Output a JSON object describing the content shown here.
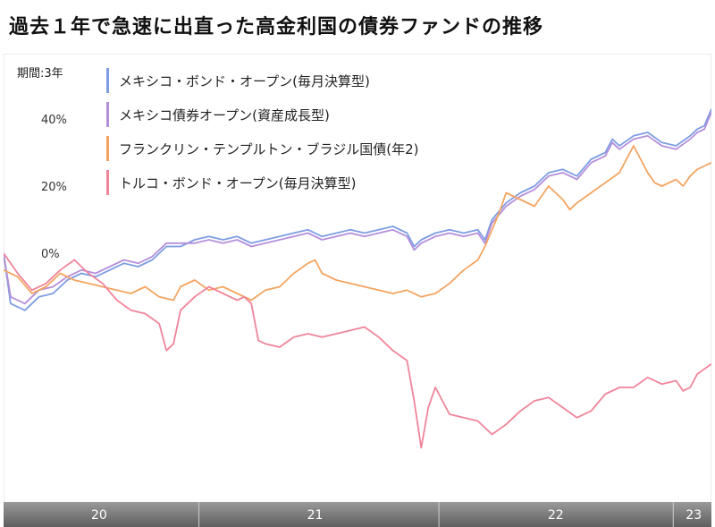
{
  "title": "過去１年で急速に出直った高金利国の債券ファンドの推移",
  "period_label": "期間:3年",
  "chart_data": {
    "type": "line",
    "title": "",
    "xlabel": "",
    "ylabel": "",
    "ylim": [
      -60,
      48
    ],
    "xlim": [
      0,
      100
    ],
    "y_ticks": [
      {
        "value": 40,
        "label": "40%"
      },
      {
        "value": 20,
        "label": "20%"
      },
      {
        "value": 0,
        "label": "0%"
      }
    ],
    "x_ticks": [
      {
        "value": 13.5,
        "label": "20"
      },
      {
        "value": 44,
        "label": "21"
      },
      {
        "value": 78,
        "label": "22"
      },
      {
        "value": 97.5,
        "label": "23"
      }
    ],
    "x_dividers": [
      27.6,
      61.5,
      94.6
    ],
    "grid": false,
    "legend_position": "top-left",
    "series": [
      {
        "name": "メキシコ・ボンド・オープン(毎月決算型)",
        "color": "#7d9de2",
        "points": [
          [
            0,
            0
          ],
          [
            1,
            -15
          ],
          [
            3,
            -17
          ],
          [
            5,
            -13
          ],
          [
            7,
            -12
          ],
          [
            9,
            -8
          ],
          [
            11,
            -6
          ],
          [
            13,
            -7
          ],
          [
            15,
            -5
          ],
          [
            17,
            -3
          ],
          [
            19,
            -4
          ],
          [
            21,
            -2
          ],
          [
            23,
            2
          ],
          [
            25,
            2
          ],
          [
            27,
            4
          ],
          [
            29,
            5
          ],
          [
            31,
            4
          ],
          [
            33,
            5
          ],
          [
            35,
            3
          ],
          [
            37,
            4
          ],
          [
            39,
            5
          ],
          [
            41,
            6
          ],
          [
            43,
            7
          ],
          [
            45,
            5
          ],
          [
            47,
            6
          ],
          [
            49,
            7
          ],
          [
            51,
            6
          ],
          [
            53,
            7
          ],
          [
            55,
            8
          ],
          [
            57,
            6
          ],
          [
            58,
            2
          ],
          [
            59,
            4
          ],
          [
            61,
            6
          ],
          [
            63,
            7
          ],
          [
            65,
            6
          ],
          [
            67,
            7
          ],
          [
            68,
            4
          ],
          [
            69,
            10
          ],
          [
            71,
            15
          ],
          [
            73,
            18
          ],
          [
            75,
            20
          ],
          [
            77,
            24
          ],
          [
            79,
            25
          ],
          [
            81,
            23
          ],
          [
            83,
            28
          ],
          [
            85,
            30
          ],
          [
            86,
            34
          ],
          [
            87,
            32
          ],
          [
            89,
            35
          ],
          [
            91,
            36
          ],
          [
            93,
            33
          ],
          [
            95,
            32
          ],
          [
            97,
            35
          ],
          [
            98,
            37
          ],
          [
            99,
            38
          ],
          [
            100,
            43
          ]
        ]
      },
      {
        "name": "メキシコ債券オープン(資産成長型)",
        "color": "#b58fdb",
        "points": [
          [
            0,
            0
          ],
          [
            1,
            -13
          ],
          [
            3,
            -15
          ],
          [
            5,
            -11
          ],
          [
            7,
            -10
          ],
          [
            9,
            -7
          ],
          [
            11,
            -5
          ],
          [
            13,
            -6
          ],
          [
            15,
            -4
          ],
          [
            17,
            -2
          ],
          [
            19,
            -3
          ],
          [
            21,
            -1
          ],
          [
            23,
            3
          ],
          [
            25,
            3
          ],
          [
            27,
            3
          ],
          [
            29,
            4
          ],
          [
            31,
            3
          ],
          [
            33,
            4
          ],
          [
            35,
            2
          ],
          [
            37,
            3
          ],
          [
            39,
            4
          ],
          [
            41,
            5
          ],
          [
            43,
            6
          ],
          [
            45,
            4
          ],
          [
            47,
            5
          ],
          [
            49,
            6
          ],
          [
            51,
            5
          ],
          [
            53,
            6
          ],
          [
            55,
            7
          ],
          [
            57,
            5
          ],
          [
            58,
            1
          ],
          [
            59,
            3
          ],
          [
            61,
            5
          ],
          [
            63,
            6
          ],
          [
            65,
            5
          ],
          [
            67,
            6
          ],
          [
            68,
            3
          ],
          [
            69,
            9
          ],
          [
            71,
            14
          ],
          [
            73,
            17
          ],
          [
            75,
            19
          ],
          [
            77,
            23
          ],
          [
            79,
            24
          ],
          [
            81,
            22
          ],
          [
            83,
            27
          ],
          [
            85,
            29
          ],
          [
            86,
            33
          ],
          [
            87,
            31
          ],
          [
            89,
            34
          ],
          [
            91,
            35
          ],
          [
            93,
            32
          ],
          [
            95,
            31
          ],
          [
            97,
            34
          ],
          [
            98,
            36
          ],
          [
            99,
            37
          ],
          [
            100,
            42
          ]
        ]
      },
      {
        "name": "フランクリン・テンプルトン・ブラジル国債(年2)",
        "color": "#f4a460",
        "points": [
          [
            0,
            -5
          ],
          [
            2,
            -7
          ],
          [
            4,
            -12
          ],
          [
            6,
            -10
          ],
          [
            8,
            -6
          ],
          [
            10,
            -8
          ],
          [
            12,
            -9
          ],
          [
            14,
            -10
          ],
          [
            16,
            -11
          ],
          [
            18,
            -12
          ],
          [
            20,
            -10
          ],
          [
            22,
            -13
          ],
          [
            24,
            -14
          ],
          [
            25,
            -10
          ],
          [
            27,
            -8
          ],
          [
            29,
            -11
          ],
          [
            31,
            -10
          ],
          [
            33,
            -12
          ],
          [
            35,
            -14
          ],
          [
            37,
            -11
          ],
          [
            39,
            -10
          ],
          [
            41,
            -6
          ],
          [
            43,
            -3
          ],
          [
            44,
            -2
          ],
          [
            45,
            -6
          ],
          [
            47,
            -8
          ],
          [
            49,
            -9
          ],
          [
            51,
            -10
          ],
          [
            53,
            -11
          ],
          [
            55,
            -12
          ],
          [
            57,
            -11
          ],
          [
            59,
            -13
          ],
          [
            61,
            -12
          ],
          [
            63,
            -9
          ],
          [
            65,
            -5
          ],
          [
            67,
            -2
          ],
          [
            68,
            2
          ],
          [
            69,
            7
          ],
          [
            70,
            12
          ],
          [
            71,
            18
          ],
          [
            73,
            16
          ],
          [
            75,
            14
          ],
          [
            77,
            20
          ],
          [
            79,
            16
          ],
          [
            80,
            13
          ],
          [
            81,
            15
          ],
          [
            83,
            18
          ],
          [
            85,
            21
          ],
          [
            87,
            24
          ],
          [
            89,
            32
          ],
          [
            90,
            28
          ],
          [
            91,
            24
          ],
          [
            92,
            21
          ],
          [
            93,
            20
          ],
          [
            95,
            22
          ],
          [
            96,
            20
          ],
          [
            97,
            23
          ],
          [
            98,
            25
          ],
          [
            99,
            26
          ],
          [
            100,
            27
          ]
        ]
      },
      {
        "name": "トルコ・ボンド・オープン(毎月決算型)",
        "color": "#f0849a",
        "points": [
          [
            0,
            0
          ],
          [
            2,
            -6
          ],
          [
            4,
            -11
          ],
          [
            6,
            -9
          ],
          [
            8,
            -5
          ],
          [
            10,
            -2
          ],
          [
            12,
            -6
          ],
          [
            14,
            -9
          ],
          [
            16,
            -14
          ],
          [
            18,
            -17
          ],
          [
            20,
            -18
          ],
          [
            22,
            -21
          ],
          [
            23,
            -29
          ],
          [
            24,
            -27
          ],
          [
            25,
            -17
          ],
          [
            27,
            -13
          ],
          [
            29,
            -10
          ],
          [
            31,
            -12
          ],
          [
            33,
            -14
          ],
          [
            34,
            -13
          ],
          [
            35,
            -15
          ],
          [
            36,
            -26
          ],
          [
            37,
            -27
          ],
          [
            39,
            -28
          ],
          [
            41,
            -25
          ],
          [
            43,
            -24
          ],
          [
            45,
            -25
          ],
          [
            47,
            -24
          ],
          [
            49,
            -23
          ],
          [
            51,
            -22
          ],
          [
            53,
            -25
          ],
          [
            55,
            -29
          ],
          [
            57,
            -32
          ],
          [
            58,
            -44
          ],
          [
            59,
            -58
          ],
          [
            60,
            -46
          ],
          [
            61,
            -40
          ],
          [
            63,
            -48
          ],
          [
            65,
            -49
          ],
          [
            67,
            -50
          ],
          [
            69,
            -54
          ],
          [
            71,
            -51
          ],
          [
            73,
            -47
          ],
          [
            75,
            -44
          ],
          [
            77,
            -43
          ],
          [
            79,
            -46
          ],
          [
            81,
            -49
          ],
          [
            83,
            -47
          ],
          [
            85,
            -42
          ],
          [
            87,
            -40
          ],
          [
            89,
            -40
          ],
          [
            91,
            -37
          ],
          [
            93,
            -39
          ],
          [
            95,
            -38
          ],
          [
            96,
            -41
          ],
          [
            97,
            -40
          ],
          [
            98,
            -36
          ],
          [
            100,
            -33
          ]
        ]
      }
    ]
  }
}
